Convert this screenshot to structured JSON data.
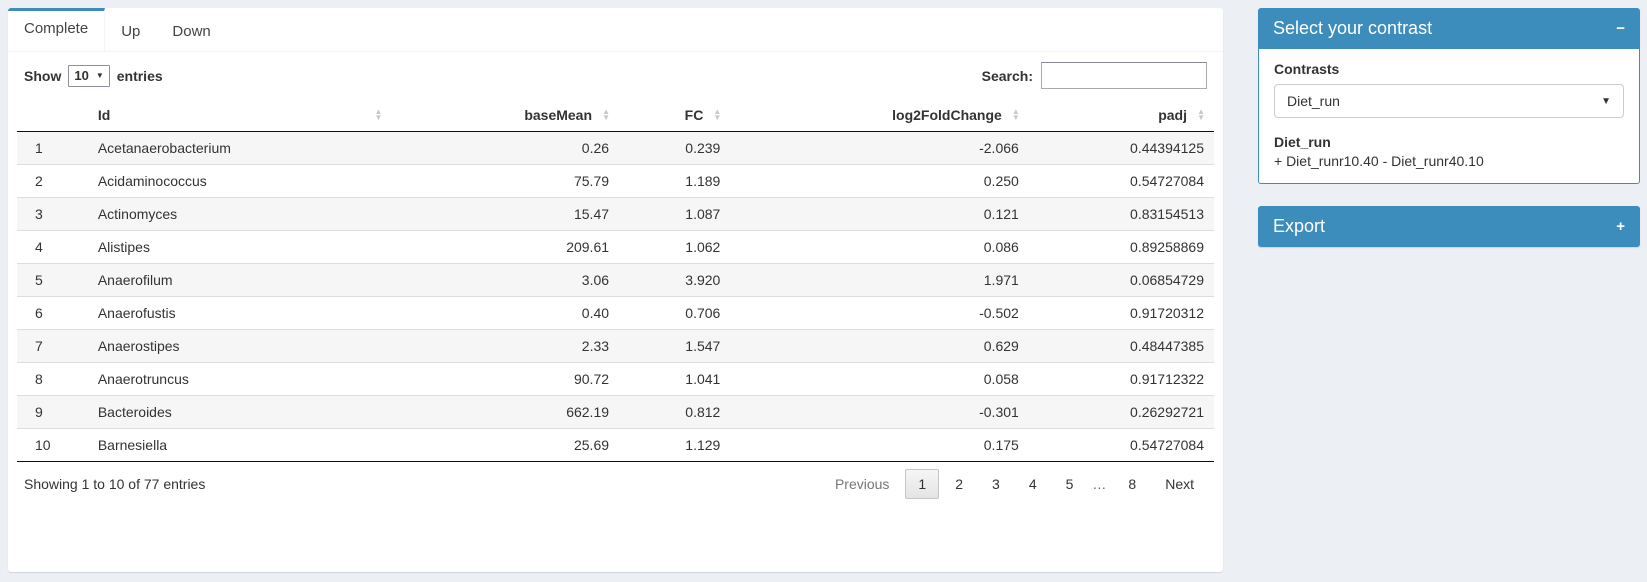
{
  "tabs": [
    {
      "label": "Complete",
      "active": true
    },
    {
      "label": "Up",
      "active": false
    },
    {
      "label": "Down",
      "active": false
    }
  ],
  "length_control": {
    "prefix": "Show",
    "value": "10",
    "suffix": "entries"
  },
  "search": {
    "label": "Search:",
    "value": ""
  },
  "table": {
    "columns": [
      {
        "key": "index",
        "label": "",
        "align": "index",
        "sortable": false
      },
      {
        "key": "id",
        "label": "Id",
        "align": "left",
        "sortable": true
      },
      {
        "key": "basemean",
        "label": "baseMean",
        "align": "right",
        "sortable": true
      },
      {
        "key": "fc",
        "label": "FC",
        "align": "right",
        "sortable": true
      },
      {
        "key": "log2foldchange",
        "label": "log2FoldChange",
        "align": "right",
        "sortable": true
      },
      {
        "key": "padj",
        "label": "padj",
        "align": "right",
        "sortable": true
      }
    ],
    "rows": [
      [
        "1",
        "Acetanaerobacterium",
        "0.26",
        "0.239",
        "-2.066",
        "0.44394125"
      ],
      [
        "2",
        "Acidaminococcus",
        "75.79",
        "1.189",
        "0.250",
        "0.54727084"
      ],
      [
        "3",
        "Actinomyces",
        "15.47",
        "1.087",
        "0.121",
        "0.83154513"
      ],
      [
        "4",
        "Alistipes",
        "209.61",
        "1.062",
        "0.086",
        "0.89258869"
      ],
      [
        "5",
        "Anaerofilum",
        "3.06",
        "3.920",
        "1.971",
        "0.06854729"
      ],
      [
        "6",
        "Anaerofustis",
        "0.40",
        "0.706",
        "-0.502",
        "0.91720312"
      ],
      [
        "7",
        "Anaerostipes",
        "2.33",
        "1.547",
        "0.629",
        "0.48447385"
      ],
      [
        "8",
        "Anaerotruncus",
        "90.72",
        "1.041",
        "0.058",
        "0.91712322"
      ],
      [
        "9",
        "Bacteroides",
        "662.19",
        "0.812",
        "-0.301",
        "0.26292721"
      ],
      [
        "10",
        "Barnesiella",
        "25.69",
        "1.129",
        "0.175",
        "0.54727084"
      ]
    ]
  },
  "footer": {
    "info": "Showing 1 to 10 of 77 entries",
    "previous_label": "Previous",
    "next_label": "Next",
    "pages": [
      "1",
      "2",
      "3",
      "4",
      "5",
      "…",
      "8"
    ],
    "active_page": "1"
  },
  "contrast_panel": {
    "title": "Select your contrast",
    "contrasts_label": "Contrasts",
    "selected_contrast": "Diet_run",
    "contrast_name": "Diet_run",
    "contrast_formula": "+ Diet_runr10.40 - Diet_runr40.10"
  },
  "export_panel": {
    "title": "Export"
  },
  "icons": {
    "sort_asc": "▲",
    "sort_desc": "▼",
    "caret_down": "▼",
    "collapse_minus": "−",
    "expand_plus": "+"
  },
  "colors": {
    "accent": "#3c8dbc",
    "page_bg": "#ecf0f5",
    "header_border": "#111111",
    "row_border": "#dddddd",
    "stripe": "#f6f6f7"
  }
}
